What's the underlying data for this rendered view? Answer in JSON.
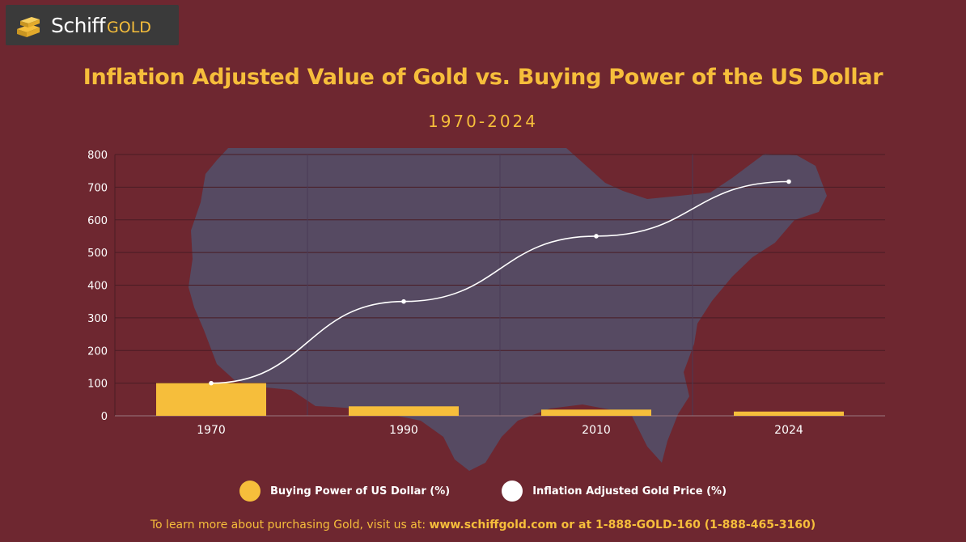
{
  "logo": {
    "brand_main": "Schiff",
    "brand_accent": "GOLD"
  },
  "chart_data": {
    "type": "bar",
    "title": "Inflation Adjusted Value of Gold vs. Buying Power of the US Dollar",
    "subtitle": "1970-2024",
    "categories": [
      "1970",
      "1990",
      "2010",
      "2024"
    ],
    "ylim": [
      0,
      800
    ],
    "yticks": [
      0,
      100,
      200,
      300,
      400,
      500,
      600,
      700,
      800
    ],
    "grid": true,
    "legend_position": "bottom",
    "series": [
      {
        "name": "Buying Power of US Dollar (%)",
        "type": "bar",
        "color": "#f6be3b",
        "values": [
          100,
          29,
          19,
          13
        ]
      },
      {
        "name": "Inflation Adjusted Gold Price (%)",
        "type": "line",
        "color": "#ffffff",
        "values": [
          100,
          350,
          550,
          717
        ]
      }
    ]
  },
  "footer": {
    "lead": "To learn more about purchasing Gold, visit us at: ",
    "contact": "www.schiffgold.com or at 1-888-GOLD-160 (1-888-465-3160)"
  }
}
